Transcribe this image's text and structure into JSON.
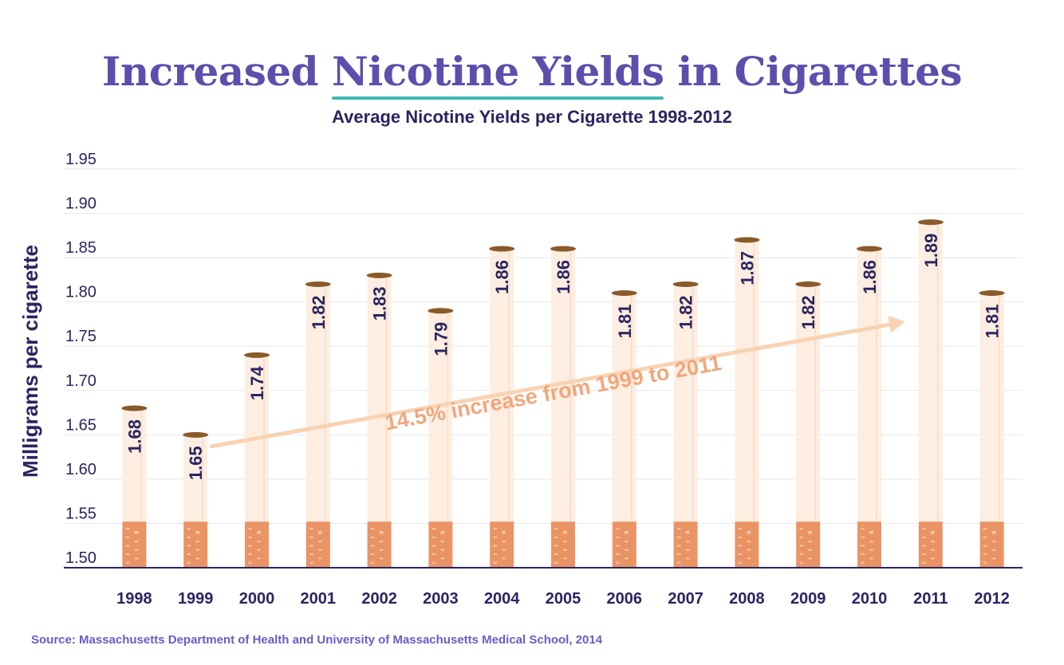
{
  "title": {
    "pre": "Increased ",
    "highlight": "Nicotine Yields",
    "post": " in Cigarettes"
  },
  "subtitle": "Average Nicotine Yields per Cigarette 1998-2012",
  "source": "Source: Massachusetts Department of Health and University of Massachusetts Medical School, 2014",
  "colors": {
    "title": "#5b4fae",
    "underline": "#3fb6b4",
    "text": "#2b2460",
    "paper": "#fdeee1",
    "filter": "#ea9466",
    "tobacco": "#8b5a2b",
    "arrow": "#f8d3b3",
    "annotation": "#f0a77c",
    "grid": "#e8e8ee",
    "axis": "#2b2460"
  },
  "chart_data": {
    "type": "bar",
    "ylabel": "Milligrams per cigarette",
    "ylim": [
      1.5,
      1.95
    ],
    "yticks": [
      "1.50",
      "1.55",
      "1.60",
      "1.65",
      "1.70",
      "1.75",
      "1.80",
      "1.85",
      "1.90",
      "1.95"
    ],
    "categories": [
      "1998",
      "1999",
      "2000",
      "2001",
      "2002",
      "2003",
      "2004",
      "2005",
      "2006",
      "2007",
      "2008",
      "2009",
      "2010",
      "2011",
      "2012"
    ],
    "values": [
      1.68,
      1.65,
      1.74,
      1.82,
      1.83,
      1.79,
      1.86,
      1.86,
      1.81,
      1.82,
      1.87,
      1.82,
      1.86,
      1.89,
      1.81
    ],
    "value_labels": [
      "1.68",
      "1.65",
      "1.74",
      "1.82",
      "1.83",
      "1.79",
      "1.86",
      "1.86",
      "1.81",
      "1.82",
      "1.87",
      "1.82",
      "1.86",
      "1.89",
      "1.81"
    ],
    "annotation": {
      "text": "14.5% increase from 1999 to 2011",
      "from": "1999",
      "to": "2011"
    },
    "grid": true,
    "legend": "none"
  }
}
